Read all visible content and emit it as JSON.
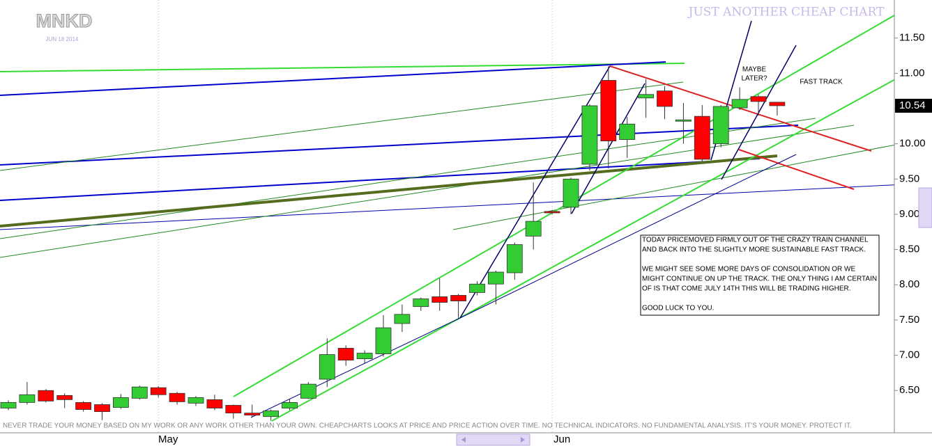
{
  "chart_data": {
    "type": "candlestick",
    "title": "MNKD",
    "subtitle": "JUN 18 2014",
    "header": "JUST ANOTHER CHEAP CHART",
    "categories": [
      null,
      null,
      null,
      null,
      null,
      null,
      null,
      null,
      "May",
      null,
      null,
      null,
      null,
      null,
      null,
      null,
      null,
      null,
      null,
      null,
      null,
      null,
      null,
      null,
      null,
      null,
      null,
      null,
      null,
      "Jun",
      null,
      null,
      null,
      null,
      null,
      null,
      null,
      null,
      null,
      null,
      null,
      null
    ],
    "open": [
      6.25,
      6.33,
      6.5,
      6.43,
      6.33,
      6.3,
      6.26,
      6.39,
      6.54,
      6.46,
      6.32,
      6.37,
      6.29,
      6.18,
      6.13,
      6.25,
      6.39,
      6.66,
      7.1,
      6.95,
      7.02,
      7.45,
      7.69,
      7.83,
      7.85,
      7.89,
      8.01,
      8.17,
      8.69,
      9.04,
      9.1,
      9.71,
      10.9,
      10.06,
      10.65,
      10.75,
      10.32,
      10.39,
      10.0,
      10.51,
      10.67,
      10.59
    ],
    "high": [
      6.36,
      6.62,
      6.52,
      6.46,
      6.35,
      6.32,
      6.45,
      6.57,
      6.56,
      6.48,
      6.42,
      6.44,
      6.3,
      6.3,
      6.23,
      6.38,
      6.62,
      7.24,
      7.14,
      7.07,
      7.57,
      7.72,
      7.82,
      8.09,
      7.87,
      8.05,
      8.2,
      8.6,
      9.45,
      9.06,
      9.52,
      10.56,
      11.1,
      10.38,
      10.92,
      10.82,
      10.58,
      10.55,
      10.55,
      10.8,
      10.7,
      10.59
    ],
    "low": [
      6.22,
      6.3,
      6.33,
      6.25,
      6.2,
      6.08,
      6.24,
      6.37,
      6.4,
      6.3,
      6.28,
      6.22,
      6.1,
      6.12,
      6.07,
      6.22,
      6.38,
      6.55,
      6.85,
      6.88,
      6.98,
      7.33,
      7.63,
      7.63,
      7.53,
      7.85,
      7.72,
      8.07,
      8.5,
      9.0,
      9.0,
      9.62,
      9.65,
      9.8,
      10.37,
      10.35,
      10.0,
      9.75,
      9.95,
      10.48,
      10.4,
      10.4
    ],
    "close": [
      6.33,
      6.44,
      6.35,
      6.37,
      6.23,
      6.2,
      6.4,
      6.55,
      6.44,
      6.34,
      6.4,
      6.25,
      6.18,
      6.15,
      6.21,
      6.33,
      6.59,
      7.01,
      6.93,
      7.03,
      7.39,
      7.58,
      7.8,
      7.75,
      7.77,
      8.01,
      8.18,
      8.57,
      8.9,
      9.02,
      9.5,
      10.54,
      10.04,
      10.28,
      10.7,
      10.53,
      10.34,
      9.78,
      10.53,
      10.63,
      10.6,
      10.54
    ],
    "up_color": "#33cc33",
    "down_color": "#ff0000",
    "last_price": 10.54,
    "ylim": [
      5.9,
      12.04
    ],
    "yticks": [
      {
        "value": 6.5,
        "label": "6.50"
      },
      {
        "value": 7,
        "label": "7.00"
      },
      {
        "value": 7.5,
        "label": "7.50"
      },
      {
        "value": 8,
        "label": "8.00"
      },
      {
        "value": 8.5,
        "label": "8.50"
      },
      {
        "value": 9,
        "label": "9.00"
      },
      {
        "value": 9.5,
        "label": "9.50"
      },
      {
        "value": 10,
        "label": "10.00"
      },
      {
        "value": 10.5,
        "label": "10.50"
      },
      {
        "value": 11,
        "label": "11.00"
      },
      {
        "value": 11.5,
        "label": "11.50"
      }
    ],
    "annotations": {
      "maybe": [
        "MAYBE",
        "LATER?"
      ],
      "fast_track": "FAST TRACK",
      "note": [
        [
          "TODAY PRICEMOVED FIRMLY OUT OF THE CRAZY TRAIN CHANNEL",
          "AND BACK INTO THE SLIGHTLY MORE SUSTAINABLE FAST TRACK."
        ],
        [
          "WE MIGHT SEE SOME MORE DAYS OF CONSOLIDATION OR WE",
          "MIGHT CONTINUE ON UP THE TRACK. THE ONLY THING I AM CERTAIN",
          "OF IS THAT COME JULY 14TH THIS WILL BE TRADING HIGHER."
        ],
        [
          "GOOD LUCK TO YOU."
        ]
      ],
      "disclaimer": "NEVER TRADE YOUR MONEY BASED ON MY  WORK OR ANY WORK OTHER THAN YOUR  OWN. CHEAPCHARTS LOOKS AT PRICE AND  PRICE ACTION OVER TIME. NO TECHNICAL  INDICATORS. NO FUNDAMENTAL ANALYSIS. IT'S  YOUR MONEY. PROTECT IT."
    }
  }
}
